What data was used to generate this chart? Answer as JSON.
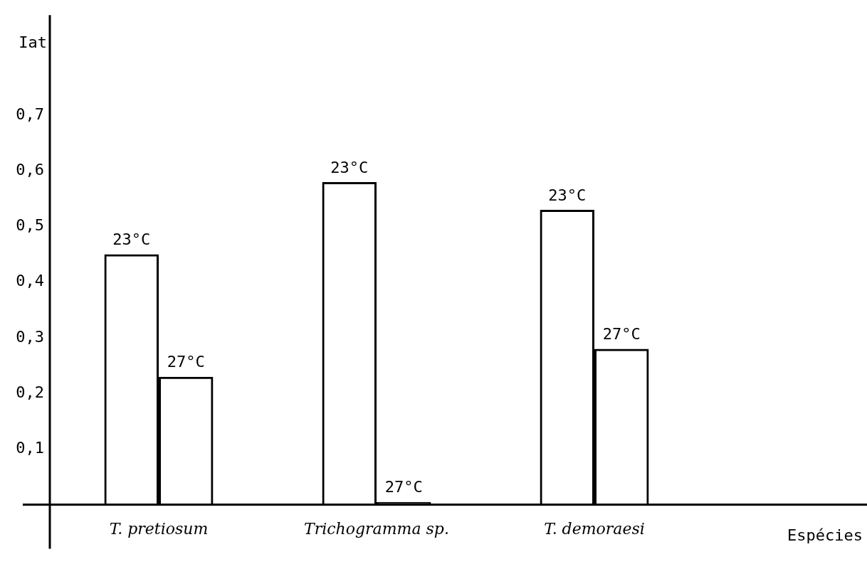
{
  "chart_data": {
    "type": "bar",
    "ylabel": "Iat",
    "xlabel": "Espécies",
    "categories": [
      "T. pretiosum",
      "Trichogramma sp.",
      "T. demoraesi"
    ],
    "series": [
      {
        "name": "23°C",
        "color": "#000000",
        "values": [
          0.45,
          0.58,
          0.53
        ]
      },
      {
        "name": "27°C",
        "color": "#000000",
        "values": [
          0.23,
          0.005,
          0.28
        ]
      }
    ],
    "ylim": [
      0,
      0.88
    ],
    "yticks": [
      {
        "value": 0.1,
        "label": "0,1"
      },
      {
        "value": 0.2,
        "label": "0,2"
      },
      {
        "value": 0.3,
        "label": "0,3"
      },
      {
        "value": 0.4,
        "label": "0,4"
      },
      {
        "value": 0.5,
        "label": "0,5"
      },
      {
        "value": 0.6,
        "label": "0,6"
      },
      {
        "value": 0.7,
        "label": "0,7"
      }
    ],
    "grid": false,
    "legend": false
  }
}
